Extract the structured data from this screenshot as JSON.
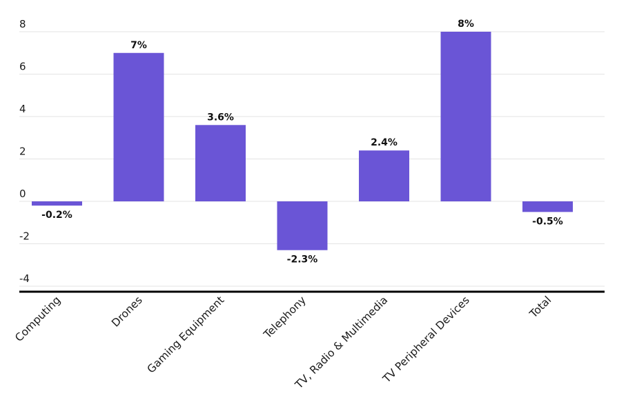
{
  "chart_data": {
    "type": "bar",
    "categories": [
      "Computing",
      "Drones",
      "Gaming Equipment",
      "Telephony",
      "TV, Radio & Multimedia",
      "TV Peripheral Devices",
      "Total"
    ],
    "values": [
      -0.2,
      7,
      3.6,
      -2.3,
      2.4,
      8,
      -0.5
    ],
    "data_labels": [
      "-0.2%",
      "7%",
      "3.6%",
      "-2.3%",
      "2.4%",
      "8%",
      "-0.5%"
    ],
    "title": "",
    "xlabel": "",
    "ylabel": "",
    "ylim": [
      -4,
      8
    ],
    "yticks": [
      "8",
      "6",
      "4",
      "2",
      "0",
      "-2",
      "-4"
    ],
    "ytick_values": [
      8,
      6,
      4,
      2,
      0,
      -2,
      -4
    ],
    "grid": true,
    "legend": "none",
    "bar_color": "#6a55d6"
  }
}
